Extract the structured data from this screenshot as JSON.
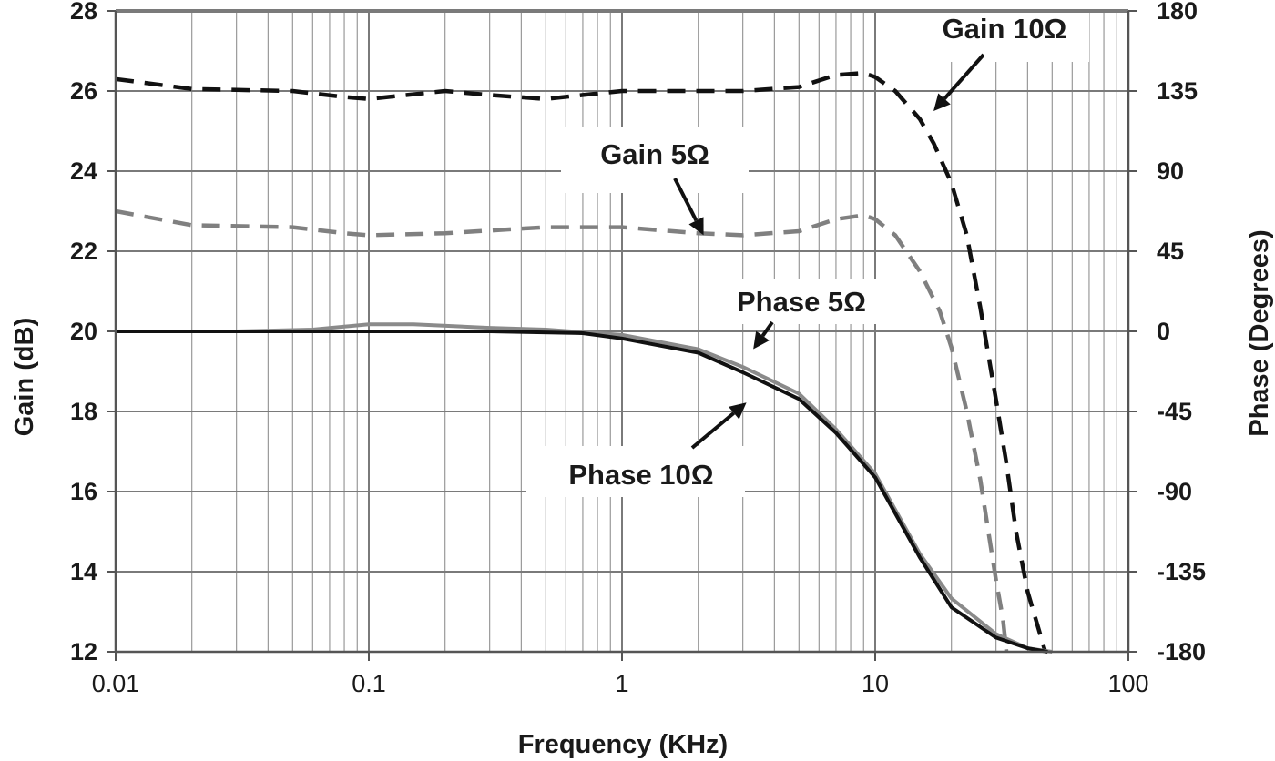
{
  "chart_data": {
    "type": "line",
    "x_scale": "log",
    "xlim": [
      0.01,
      100
    ],
    "ylim_left": [
      12,
      28
    ],
    "ylim_right": [
      -180,
      180
    ],
    "xlabel": "Frequency (KHz)",
    "ylabel_left": "Gain (dB)",
    "ylabel_right": "Phase (Degrees)",
    "x_ticks": [
      {
        "value": 0.01,
        "label": "0.01"
      },
      {
        "value": 0.1,
        "label": "0.1"
      },
      {
        "value": 1,
        "label": "1"
      },
      {
        "value": 10,
        "label": "10"
      },
      {
        "value": 100,
        "label": "100"
      }
    ],
    "y_ticks_left": [
      {
        "value": 12,
        "label": "12"
      },
      {
        "value": 14,
        "label": "14"
      },
      {
        "value": 16,
        "label": "16"
      },
      {
        "value": 18,
        "label": "18"
      },
      {
        "value": 20,
        "label": "20"
      },
      {
        "value": 22,
        "label": "22"
      },
      {
        "value": 24,
        "label": "24"
      },
      {
        "value": 26,
        "label": "26"
      },
      {
        "value": 28,
        "label": "28"
      }
    ],
    "y_ticks_right": [
      {
        "value": -180,
        "label": "-180"
      },
      {
        "value": -135,
        "label": "-135"
      },
      {
        "value": -90,
        "label": "-90"
      },
      {
        "value": -45,
        "label": "-45"
      },
      {
        "value": 0,
        "label": "0"
      },
      {
        "value": 45,
        "label": "45"
      },
      {
        "value": 90,
        "label": "90"
      },
      {
        "value": 135,
        "label": "135"
      },
      {
        "value": 180,
        "label": "180"
      }
    ],
    "grid": true,
    "series": [
      {
        "name": "Gain 10Ω",
        "axis": "left",
        "style": "dashed",
        "color": "#111111",
        "points": [
          [
            0.01,
            26.3
          ],
          [
            0.02,
            26.05
          ],
          [
            0.05,
            26.0
          ],
          [
            0.08,
            25.85
          ],
          [
            0.1,
            25.8
          ],
          [
            0.2,
            26.0
          ],
          [
            0.3,
            25.9
          ],
          [
            0.5,
            25.8
          ],
          [
            0.7,
            25.9
          ],
          [
            1,
            26.0
          ],
          [
            2,
            26.0
          ],
          [
            3,
            26.0
          ],
          [
            5,
            26.1
          ],
          [
            7,
            26.4
          ],
          [
            9,
            26.45
          ],
          [
            10,
            26.35
          ],
          [
            12,
            26.0
          ],
          [
            15,
            25.3
          ],
          [
            17,
            24.7
          ],
          [
            20,
            23.7
          ],
          [
            23,
            22.4
          ],
          [
            26,
            20.6
          ],
          [
            30,
            18.3
          ],
          [
            33,
            16.7
          ],
          [
            36,
            15.0
          ],
          [
            40,
            13.5
          ],
          [
            45,
            12.4
          ],
          [
            47,
            12.0
          ]
        ]
      },
      {
        "name": "Gain 5Ω",
        "axis": "left",
        "style": "dashed",
        "color": "#808080",
        "points": [
          [
            0.01,
            23.0
          ],
          [
            0.02,
            22.65
          ],
          [
            0.05,
            22.6
          ],
          [
            0.08,
            22.45
          ],
          [
            0.1,
            22.4
          ],
          [
            0.2,
            22.45
          ],
          [
            0.5,
            22.6
          ],
          [
            1,
            22.6
          ],
          [
            2,
            22.45
          ],
          [
            3,
            22.4
          ],
          [
            5,
            22.5
          ],
          [
            7,
            22.8
          ],
          [
            9,
            22.9
          ],
          [
            10,
            22.8
          ],
          [
            12,
            22.4
          ],
          [
            15,
            21.5
          ],
          [
            18,
            20.5
          ],
          [
            20,
            19.6
          ],
          [
            23,
            18.0
          ],
          [
            26,
            16.3
          ],
          [
            28,
            15.0
          ],
          [
            30,
            13.8
          ],
          [
            32,
            12.8
          ],
          [
            33,
            12.0
          ]
        ]
      },
      {
        "name": "Phase 5Ω",
        "axis": "right",
        "style": "solid",
        "color": "#8a8a8a",
        "points": [
          [
            0.01,
            0
          ],
          [
            0.03,
            0
          ],
          [
            0.06,
            1
          ],
          [
            0.1,
            4
          ],
          [
            0.15,
            4
          ],
          [
            0.3,
            2
          ],
          [
            0.5,
            1
          ],
          [
            1,
            -2
          ],
          [
            2,
            -10
          ],
          [
            3,
            -20
          ],
          [
            5,
            -35
          ],
          [
            7,
            -55
          ],
          [
            10,
            -80
          ],
          [
            15,
            -125
          ],
          [
            20,
            -150
          ],
          [
            30,
            -170
          ],
          [
            40,
            -178
          ],
          [
            50,
            -180
          ]
        ]
      },
      {
        "name": "Phase 10Ω",
        "axis": "right",
        "style": "solid",
        "color": "#111111",
        "points": [
          [
            0.01,
            0
          ],
          [
            0.05,
            0
          ],
          [
            0.1,
            0
          ],
          [
            0.3,
            0
          ],
          [
            0.7,
            -1
          ],
          [
            1,
            -4
          ],
          [
            2,
            -12
          ],
          [
            3,
            -23
          ],
          [
            5,
            -38
          ],
          [
            7,
            -57
          ],
          [
            10,
            -82
          ],
          [
            15,
            -127
          ],
          [
            20,
            -155
          ],
          [
            30,
            -172
          ],
          [
            40,
            -178
          ],
          [
            48,
            -180
          ]
        ]
      }
    ],
    "annotations": [
      {
        "text": "Gain 10Ω",
        "points_to": [
          17,
          25.5
        ],
        "axis": "left"
      },
      {
        "text": "Gain 5Ω",
        "points_to": [
          2.1,
          22.4
        ],
        "axis": "left"
      },
      {
        "text": "Phase 5Ω",
        "points_to": [
          3.3,
          -10
        ],
        "axis": "right"
      },
      {
        "text": "Phase 10Ω",
        "points_to": [
          3.1,
          -40
        ],
        "axis": "right"
      }
    ]
  }
}
